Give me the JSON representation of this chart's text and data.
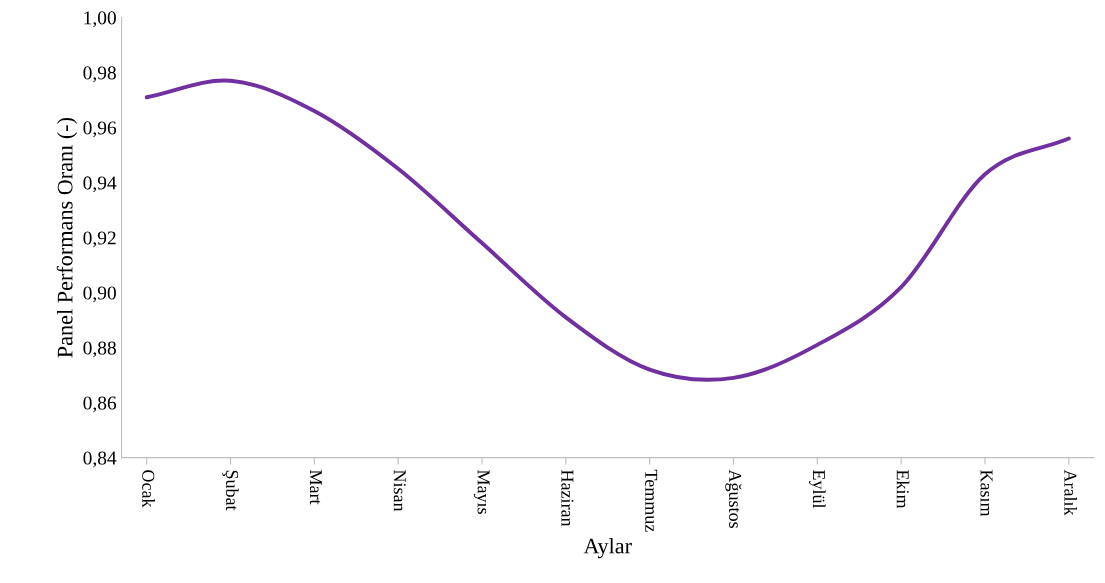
{
  "chart_data": {
    "type": "line",
    "xlabel": "Aylar",
    "ylabel": "Panel Performans Oranı (-)",
    "categories": [
      "Ocak",
      "Şubat",
      "Mart",
      "Nisan",
      "Mayıs",
      "Haziran",
      "Temmuz",
      "Ağustos",
      "Eylül",
      "Ekim",
      "Kasım",
      "Aralık"
    ],
    "series": [
      {
        "color": "#7030a0",
        "values": [
          0.971,
          0.977,
          0.966,
          0.945,
          0.918,
          0.891,
          0.872,
          0.869,
          0.881,
          0.902,
          0.943,
          0.956
        ]
      }
    ],
    "ylim": [
      0.84,
      1.0
    ],
    "yticks": [
      {
        "value": 0.84,
        "label": "0,84"
      },
      {
        "value": 0.86,
        "label": "0,86"
      },
      {
        "value": 0.88,
        "label": "0,88"
      },
      {
        "value": 0.9,
        "label": "0,90"
      },
      {
        "value": 0.92,
        "label": "0,92"
      },
      {
        "value": 0.94,
        "label": "0,94"
      },
      {
        "value": 0.96,
        "label": "0,96"
      },
      {
        "value": 0.98,
        "label": "0,98"
      },
      {
        "value": 1.0,
        "label": "1,00"
      }
    ],
    "grid": false,
    "legend": false,
    "marker": "none",
    "line_style": "solid"
  }
}
